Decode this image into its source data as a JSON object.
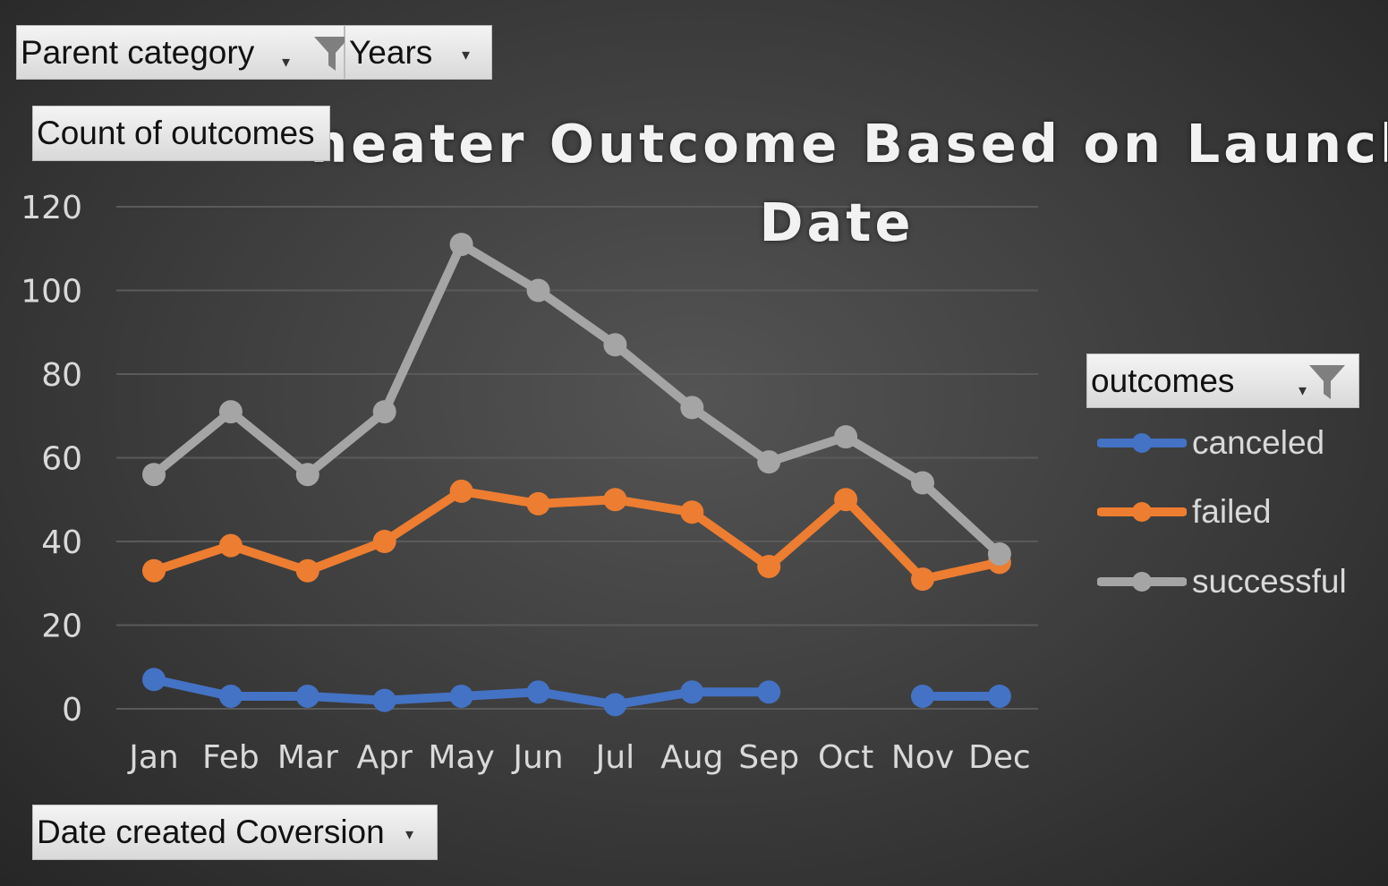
{
  "filters": {
    "parent_category": "Parent category",
    "years": "Years",
    "values_field": "Count of outcomes",
    "legend_field": "outcomes",
    "axis_field": "Date created Coversion"
  },
  "colors": {
    "canceled": "#4472C4",
    "failed": "#ED7D31",
    "successful": "#A5A5A5",
    "gridline": "#5a5a5a",
    "axis_text": "#d9d9d9"
  },
  "chart_data": {
    "type": "line",
    "title_line1": "Theater Outcome Based on Launch",
    "title_line2": "Date",
    "categories": [
      "Jan",
      "Feb",
      "Mar",
      "Apr",
      "May",
      "Jun",
      "Jul",
      "Aug",
      "Sep",
      "Oct",
      "Nov",
      "Dec"
    ],
    "ylim": [
      0,
      120
    ],
    "yticks": [
      0,
      20,
      40,
      60,
      80,
      100,
      120
    ],
    "grid": true,
    "legend_position": "right",
    "series": [
      {
        "name": "canceled",
        "values": [
          7,
          3,
          3,
          2,
          3,
          4,
          1,
          4,
          4,
          null,
          3,
          3
        ]
      },
      {
        "name": "failed",
        "values": [
          33,
          39,
          33,
          40,
          52,
          49,
          50,
          47,
          34,
          50,
          31,
          35
        ]
      },
      {
        "name": "successful",
        "values": [
          56,
          71,
          56,
          71,
          111,
          100,
          87,
          72,
          59,
          65,
          54,
          37
        ]
      }
    ]
  }
}
